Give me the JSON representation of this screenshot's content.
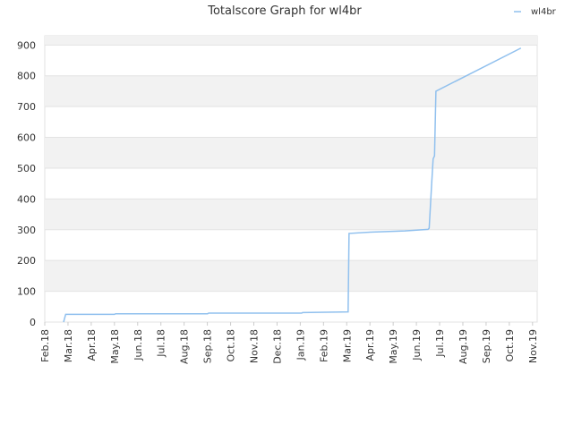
{
  "chart_data": {
    "type": "line",
    "title": "Totalscore Graph for wl4br",
    "x": [
      0.81,
      0.9,
      3.0,
      3.05,
      7.01,
      7.06,
      11.06,
      11.1,
      13.06,
      13.1,
      14.0,
      15.5,
      16.5,
      16.55,
      16.65,
      16.72,
      16.78,
      16.84,
      20.5
    ],
    "series": [
      {
        "name": "wl4br",
        "color": "#90c0ee",
        "values": [
          0,
          25,
          25,
          27,
          27,
          29,
          29,
          31,
          33,
          288,
          292,
          296,
          301,
          305,
          440,
          530,
          540,
          750,
          890
        ]
      }
    ],
    "xlim": [
      0,
      21.2
    ],
    "xticks": [
      {
        "value": 0,
        "label": "Feb.18"
      },
      {
        "value": 1,
        "label": "Mar.18"
      },
      {
        "value": 2,
        "label": "Apr.18"
      },
      {
        "value": 3,
        "label": "May.18"
      },
      {
        "value": 4,
        "label": "Jun.18"
      },
      {
        "value": 5,
        "label": "Jul.18"
      },
      {
        "value": 6,
        "label": "Aug.18"
      },
      {
        "value": 7,
        "label": "Sep.18"
      },
      {
        "value": 8,
        "label": "Oct.18"
      },
      {
        "value": 9,
        "label": "Nov.18"
      },
      {
        "value": 10,
        "label": "Dec.18"
      },
      {
        "value": 11,
        "label": "Jan.19"
      },
      {
        "value": 12,
        "label": "Feb.19"
      },
      {
        "value": 13,
        "label": "Mar.19"
      },
      {
        "value": 14,
        "label": "Apr.19"
      },
      {
        "value": 15,
        "label": "May.19"
      },
      {
        "value": 16,
        "label": "Jun.19"
      },
      {
        "value": 17,
        "label": "Jul.19"
      },
      {
        "value": 18,
        "label": "Aug.19"
      },
      {
        "value": 19,
        "label": "Sep.19"
      },
      {
        "value": 20,
        "label": "Oct.19"
      },
      {
        "value": 21,
        "label": "Nov.19"
      }
    ],
    "ylim": [
      0,
      930
    ],
    "yticks": [
      0,
      100,
      200,
      300,
      400,
      500,
      600,
      700,
      800,
      900
    ],
    "grid": true,
    "legend": "top-right"
  }
}
